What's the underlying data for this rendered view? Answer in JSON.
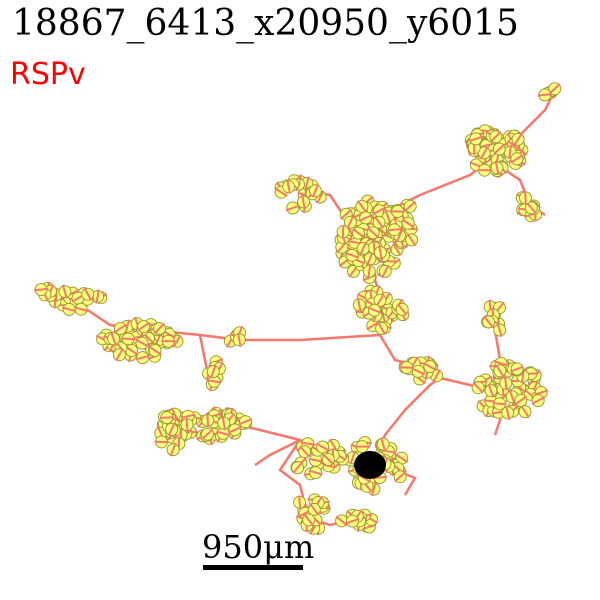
{
  "header": {
    "title": "18867_6413_x20950_y6015",
    "region": "RSPv"
  },
  "scale_bar": {
    "label": "950μm",
    "length_um": 950
  },
  "colors": {
    "region_text": "#ff0000",
    "axon": "#f7786b",
    "node_fill": "#ffff80",
    "node_outline": "#9a9a33",
    "soma": "#000000",
    "scale_bar": "#000000"
  },
  "icons": {
    "soma": "soma-marker",
    "node": "branch-node-marker"
  }
}
